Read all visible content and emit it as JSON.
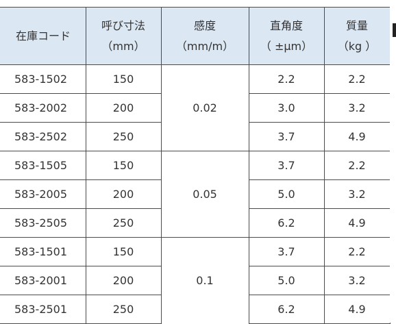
{
  "headers": [
    {
      "line1": "在庫コード",
      "line2": ""
    },
    {
      "line1": "呼び寸法",
      "line2": "（mm）"
    },
    {
      "line1": "感度",
      "line2": "（mm/m）"
    },
    {
      "line1": "直角度",
      "line2": "（ ±μm）"
    },
    {
      "line1": "質量",
      "line2": "（kg ）"
    }
  ],
  "groups": [
    {
      "sensitivity": "0.02",
      "rows": [
        {
          "code": "583-1502",
          "size": "150",
          "squareness": "2.2",
          "mass": "2.2"
        },
        {
          "code": "583-2002",
          "size": "200",
          "squareness": "3.0",
          "mass": "3.2"
        },
        {
          "code": "583-2502",
          "size": "250",
          "squareness": "3.7",
          "mass": "4.9"
        }
      ]
    },
    {
      "sensitivity": "0.05",
      "rows": [
        {
          "code": "583-1505",
          "size": "150",
          "squareness": "3.7",
          "mass": "2.2"
        },
        {
          "code": "583-2005",
          "size": "200",
          "squareness": "5.0",
          "mass": "3.2"
        },
        {
          "code": "583-2505",
          "size": "250",
          "squareness": "6.2",
          "mass": "4.9"
        }
      ]
    },
    {
      "sensitivity": "0.1",
      "rows": [
        {
          "code": "583-1501",
          "size": "150",
          "squareness": "3.7",
          "mass": "2.2"
        },
        {
          "code": "583-2001",
          "size": "200",
          "squareness": "5.0",
          "mass": "3.2"
        },
        {
          "code": "583-2501",
          "size": "250",
          "squareness": "6.2",
          "mass": "4.9"
        }
      ]
    }
  ]
}
